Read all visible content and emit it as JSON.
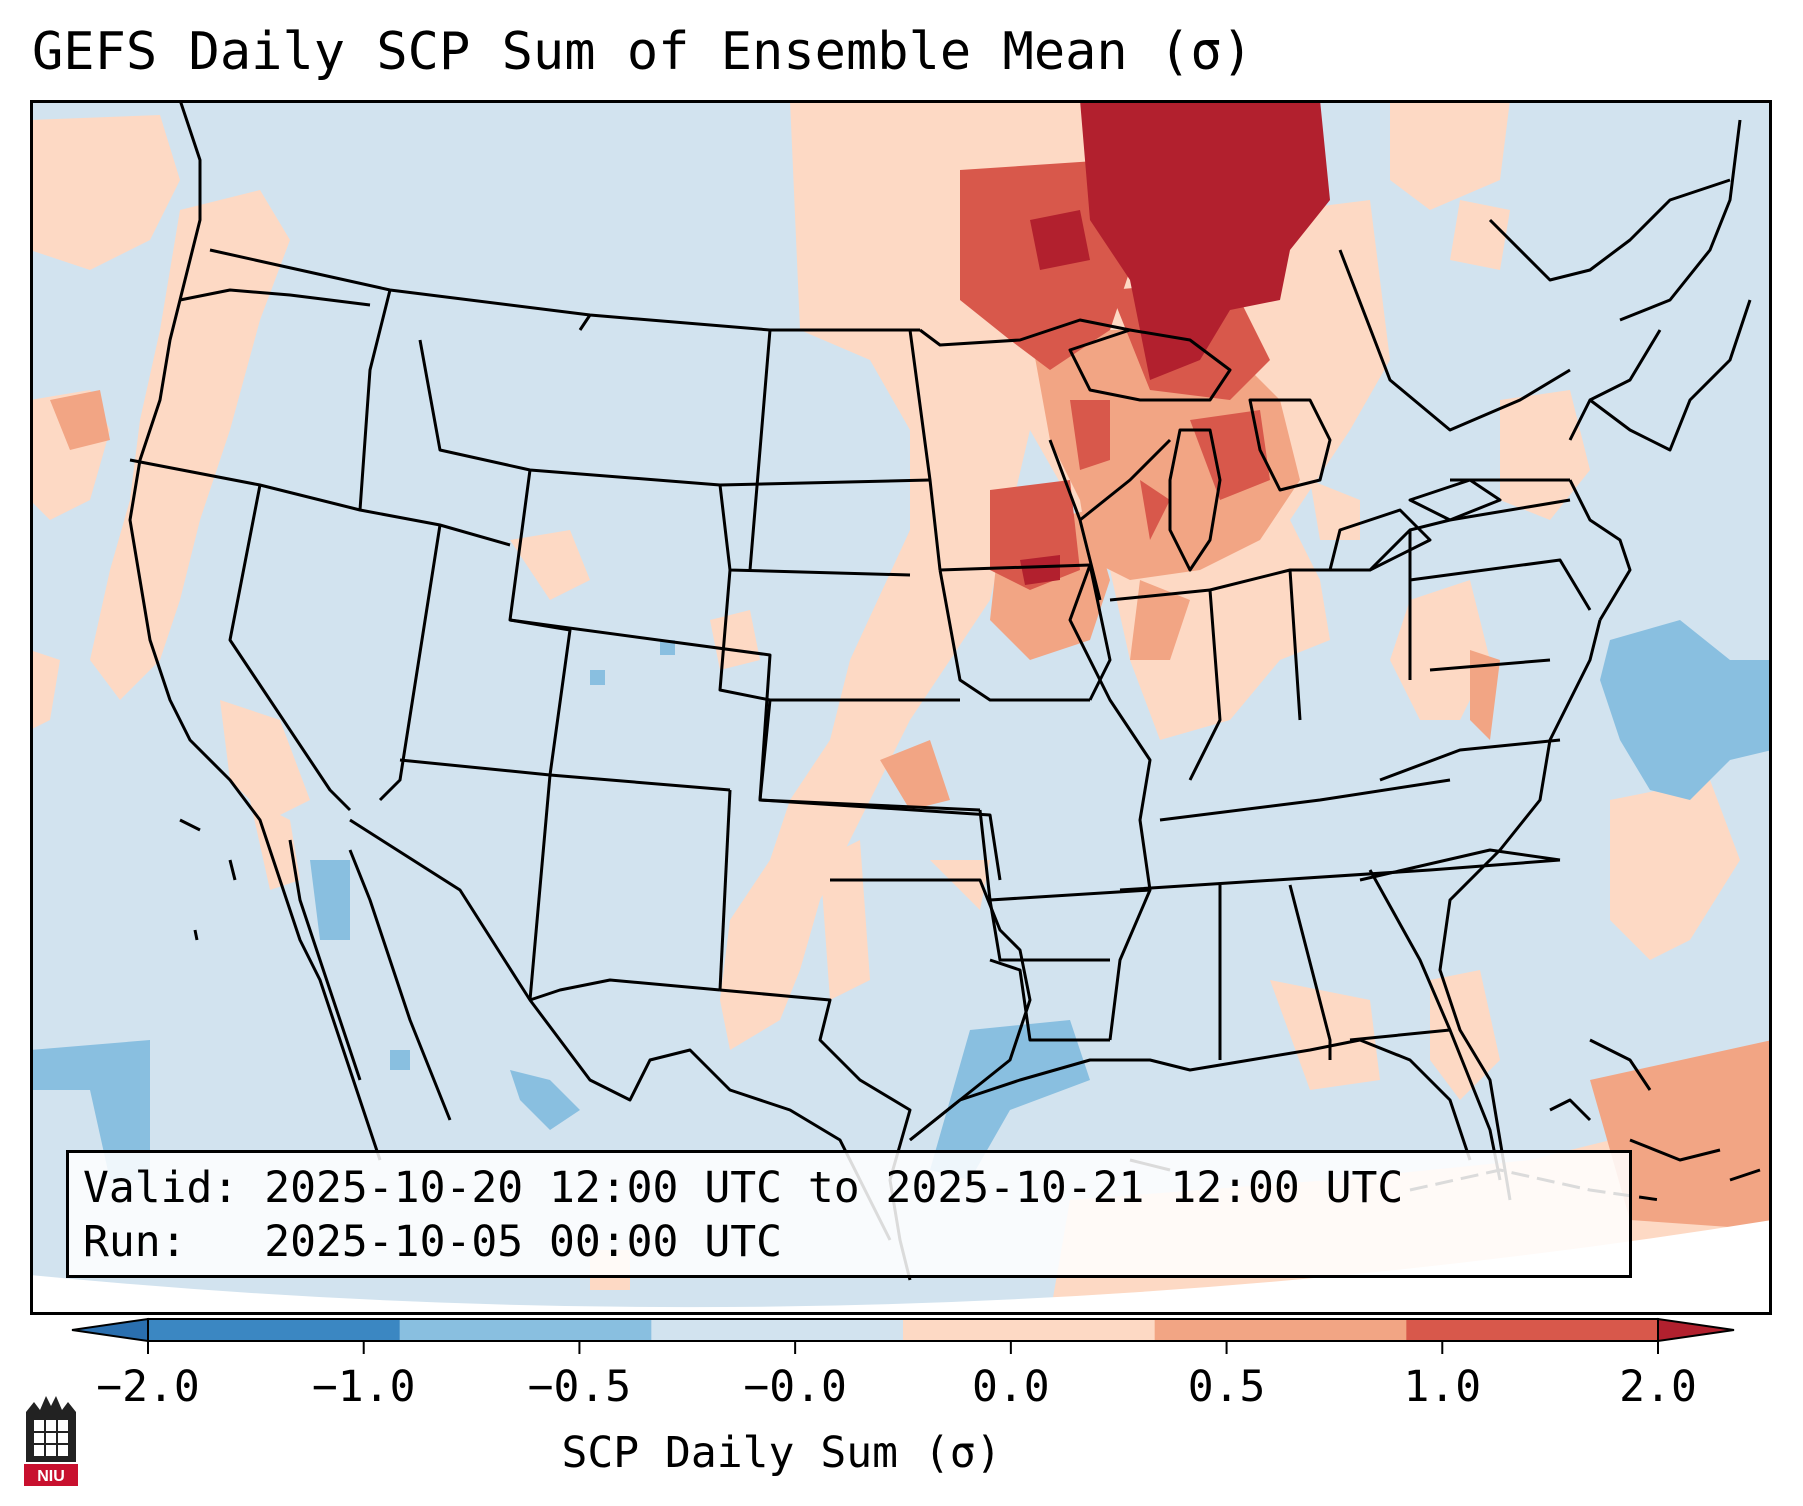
{
  "title": "GEFS Daily SCP Sum of Ensemble Mean (σ)",
  "info": {
    "valid_label": "Valid:",
    "valid_value": "2025-10-20 12:00 UTC to 2025-10-21 12:00 UTC",
    "run_label": "Run:",
    "run_value": "2025-10-05 00:00 UTC"
  },
  "colorbar": {
    "label": "SCP Daily Sum (σ)",
    "ticks": [
      "−2.0",
      "−1.0",
      "−0.5",
      "−0.0",
      "0.0",
      "0.5",
      "1.0",
      "2.0"
    ],
    "colors": [
      "#3b87c2",
      "#89bfe0",
      "#d2e3ef",
      "#fdd9c4",
      "#f2a584",
      "#d8584b"
    ],
    "extend_low": "#2a6faf",
    "extend_high": "#b2202e"
  },
  "map_colors": {
    "background": "#d2e3ef",
    "light_red": "#fdd9c4",
    "mid_red": "#f2a584",
    "red": "#d8584b",
    "dark_red": "#b2202e",
    "light_blue": "#89bfe0"
  },
  "logo": {
    "text": "NIU"
  }
}
